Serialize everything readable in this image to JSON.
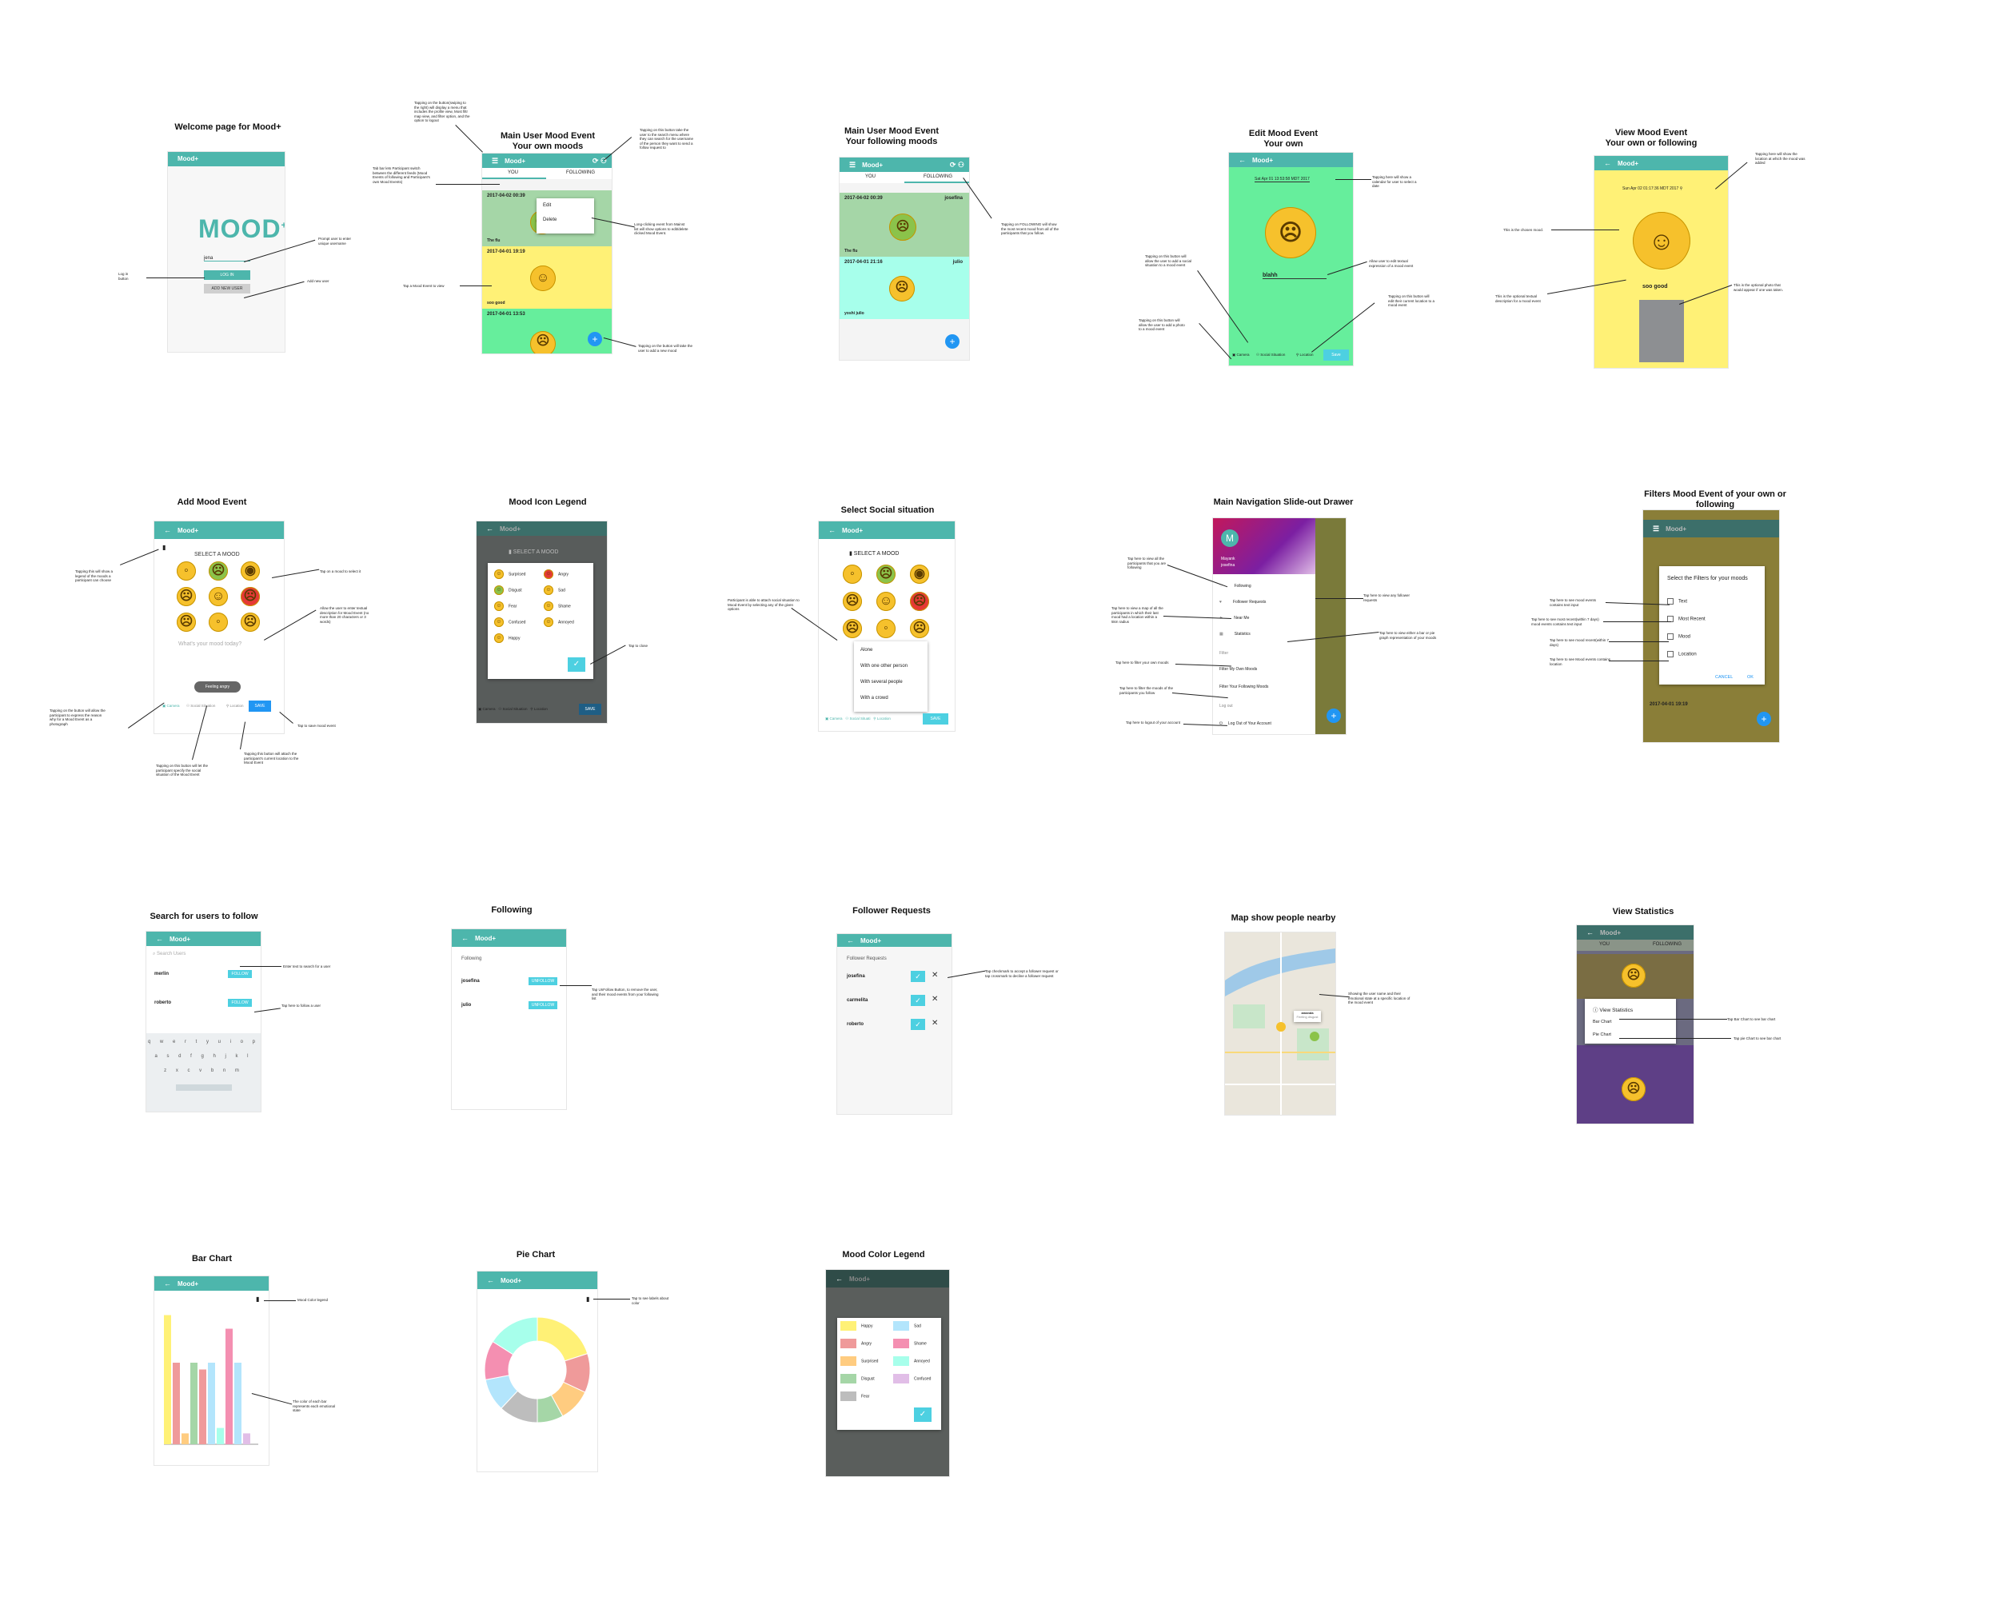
{
  "app": {
    "name": "Mood+",
    "logo": "MOOD"
  },
  "colors": {
    "teal": "#4db6ac",
    "blue": "#2196f3",
    "yellow": "#fff176",
    "green": "#66ee9c",
    "lightgreen": "#a5d6a7",
    "cyan": "#a7ffeb",
    "olive": "#9e8f3c",
    "purple": "#6a4c93"
  },
  "screens": {
    "welcome": {
      "title": "Welcome page for  Mood+",
      "username": "jena",
      "login": "LOG IN",
      "add_user": "ADD NEW USER",
      "n1": "Prompt user to enter unique username",
      "n2": "Add new user",
      "n3": "Log in button"
    },
    "main_own": {
      "title1": "Main User Mood Event",
      "title2": "Your own moods",
      "tab_you": "YOU",
      "tab_following": "FOLLOWING",
      "menu_edit": "Edit",
      "menu_delete": "Delete",
      "c1_date": "2017-04-02 00:39",
      "c1_reason": "The flu",
      "c2_date": "2017-04-01 19:19",
      "c2_reason": "soo good",
      "c3_date": "2017-04-01 13:53",
      "n1": "Tapping on the button(swiping to the right) will display a menu that includes the profile view, Most filtr map view, and filter option, and the option to logout",
      "n2": "Tapping on this button take the user to the search menu where they can search for the username of the person they want to send a follow request to",
      "n3": "Tab bar lets Participant switch between the different feeds (Mood Events of following and Participant's own Mood Events)",
      "n4": "Long-clicking event from Mainst list will show options to edit/delete clicked Mood Event.",
      "n5": "Tap a Mood Event to view",
      "n6": "Tapping on the button will take the user to add a new mood"
    },
    "main_following": {
      "title1": "Main User Mood Event",
      "title2": "Your following moods",
      "tab_you": "YOU",
      "tab_following": "FOLLOWING",
      "c1_date": "2017-04-02 00:39",
      "c1_user": "josefina",
      "c1_reason": "The flu",
      "c2_date": "2017-04-01 21:16",
      "c2_user": "julio",
      "c2_reason": "yoshi julio",
      "n1": "Tapping on FOLLOWING will show the most recent mood from all of the participants that you follow."
    },
    "edit": {
      "title1": "Edit Mood Event",
      "title2": "Your own",
      "date": "Sat Apr 01 13:53:58 MDT 2017",
      "reason": "blahh",
      "cam": "Camera",
      "soc": "Social Situation",
      "loc": "Location",
      "save": "Save",
      "n1": "Tapping here will show a calendar for user to select a date",
      "n2": "Allow user to edit textual expression of a mood event",
      "n3": "Tapping on this button will allow the user to add a social situation to a mood event",
      "n4": "Tapping on this button will allow the user to add a photo to a mood event",
      "n5": "Tapping on this button will edit their current location to a mood event"
    },
    "view": {
      "title1": "View Mood Event",
      "title2": "Your own or following",
      "date": "Sun Apr 02 01:17:36 MDT 2017",
      "reason": "soo good",
      "n1": "Tapping here will show the location at which the mood was added",
      "n2": "This is the chosen mood.",
      "n3": "This is the optional textual description for a mood event",
      "n4": "This is the optional photo that would appear if one was taken."
    },
    "add": {
      "title": "Add Mood Event",
      "select": "SELECT A MOOD",
      "placeholder": "What's your mood today?",
      "toast": "Feeling angry",
      "cam": "Camera",
      "soc": "Social Situation",
      "loc": "Location",
      "save": "SAVE",
      "n1": "Tapping this will show a legend of the moods a participant can choose",
      "n2": "Tap on a mood to select it",
      "n3": "Allow the user to enter textual description for Mood Event (no more than 20 characters or 3 words)",
      "n4": "Tapping on the button will allow the participant to express the reason why for a Mood Event as a photograph",
      "n5": "Tapping on this button will let the participant specify the social situation of the Mood Event",
      "n6": "Tapping this button will attach the participant's current location to the Mood Event",
      "n7": "Tap to save mood event"
    },
    "legend": {
      "title": "Mood Icon Legend",
      "select": "SELECT A MOOD",
      "items": [
        "Surprised",
        "Angry",
        "Disgust",
        "Sad",
        "Fear",
        "Shame",
        "Confused",
        "Annoyed",
        "Happy"
      ],
      "n1": "Tap to close"
    },
    "social": {
      "title": "Select Social situation",
      "select": "SELECT A MOOD",
      "options": [
        "Alone",
        "With one other person",
        "With several people",
        "With a crowd"
      ],
      "n1": "Participant is able to attach social situation to Mood Event by selecting any of the given options"
    },
    "drawer": {
      "title": "Main Navigation Slide-out Drawer",
      "user": "Mayank",
      "user2": "josefina",
      "items": [
        "Following",
        "Follower Requests",
        "Near Me",
        "Statistics"
      ],
      "filter_hdr": "Filter",
      "f1": "Filter My Own Moods",
      "f2": "Filter Your Following Moods",
      "logout_hdr": "Log out",
      "logout": "Log Out of Your Account",
      "n1": "Tap here to view all the participants that you are following",
      "n2": "Tap here to view any follower requests",
      "n3": "Tap here to view a map of all the participants in which their last mood had a location within a 5km radius",
      "n4": "Tap here to view either a bar or pie graph representation of your moods",
      "n5": "Tap here to filter your own moods",
      "n6": "Tap here to filter the moods of the participants you follow",
      "n7": "Tap here to logout of your account"
    },
    "filters": {
      "title": "Filters  Mood Event of your own or following",
      "dlg": "Select the Filters for your moods",
      "opts": [
        "Text",
        "Most Recent",
        "Mood",
        "Location"
      ],
      "cancel": "CANCEL",
      "ok": "OK",
      "date": "2017-04-01 19:19",
      "n1": "Tap here to see mood events contains text input",
      "n2": "Tap here to see most recent(within 7 days) mood events contains text input",
      "n3": "Tap here to see mood recent(within 7 days)",
      "n4": "Tap here to see Mood events contains location"
    },
    "search": {
      "title": "Search for users to follow",
      "placeholder": "Search Users",
      "users": [
        "merlin",
        "roberto"
      ],
      "follow": "FOLLOW",
      "keys": [
        "q w e r t y u i o p",
        "a s d f g h j k l",
        "z x c v b n m"
      ],
      "n1": "Enter text to search for a user",
      "n2": "Tap here to follow a user"
    },
    "following": {
      "title": "Following",
      "header": "Following",
      "users": [
        "josefina",
        "julio"
      ],
      "unfollow": "UNFOLLOW",
      "n1": "Tap UnFollow Button, to remove the user, and their mood events from your following list"
    },
    "requests": {
      "title": "Follower Requests",
      "header": "Follower Requests",
      "users": [
        "josefina",
        "carmelita",
        "roberto"
      ],
      "n1": "Tap checkmark to accept a follower request or tap crossmark to decline a follower request"
    },
    "map": {
      "title": "Map show people nearby",
      "pin": "amanda",
      "pin2": "Feeling disgust",
      "n1": "Showing the user name and their emotional state at a specific location of the mood event"
    },
    "stats": {
      "title": "View Statistics",
      "dlg": "View Statistics",
      "opts": [
        "Bar Chart",
        "Pie Chart"
      ],
      "tab_you": "YOU",
      "tab_following": "FOLLOWING",
      "n1": "Tap Bar Chart to see bar chart",
      "n2": "Tap pie Chart to see bar chart"
    },
    "barchart": {
      "title": "Bar Chart",
      "n1": "Mood Color legend",
      "n2": "The color of each bar represents each emotional state"
    },
    "piechart": {
      "title": "Pie Chart",
      "n1": "Tap to see labels about color"
    },
    "colorlegend": {
      "title": "Mood Color Legend",
      "items": [
        "Happy",
        "Sad",
        "Angry",
        "Shame",
        "Surprised",
        "Annoyed",
        "Disgust",
        "Confused",
        "Fear"
      ]
    }
  }
}
